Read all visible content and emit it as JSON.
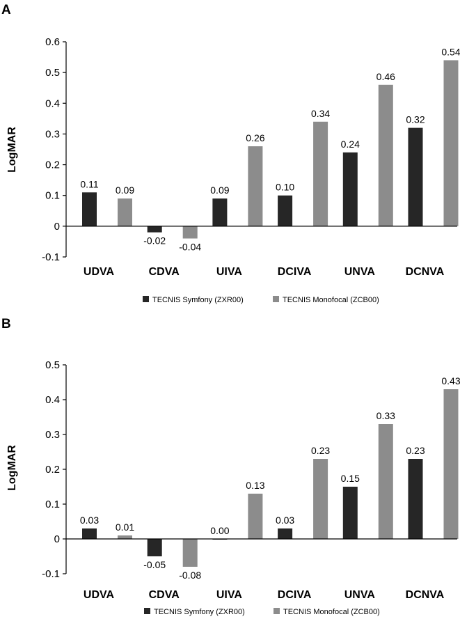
{
  "colors": {
    "series1": "#262626",
    "series2": "#8c8c8c",
    "axis": "#000000"
  },
  "chart_data": [
    {
      "panel": "A",
      "type": "bar",
      "ylabel": "LogMAR",
      "xlabel": "",
      "ylim": [
        -0.1,
        0.6
      ],
      "ytick_values": [
        -0.1,
        0,
        0.1,
        0.2,
        0.3,
        0.4,
        0.5,
        0.6
      ],
      "ytick_labels": [
        "-0.1",
        "0",
        "0.1",
        "0.2",
        "0.3",
        "0.4",
        "0.5",
        "0.6"
      ],
      "categories": [
        "UDVA",
        "CDVA",
        "UIVA",
        "DCIVA",
        "UNVA",
        "DCNVA"
      ],
      "series": [
        {
          "name": "TECNIS Symfony (ZXR00)",
          "values": [
            0.11,
            -0.02,
            0.09,
            0.1,
            0.24,
            0.32
          ],
          "labels": [
            "0.11",
            "-0.02",
            "0.09",
            "0.10",
            "0.24",
            "0.32"
          ]
        },
        {
          "name": "TECNIS Monofocal (ZCB00)",
          "values": [
            0.09,
            -0.04,
            0.26,
            0.34,
            0.46,
            0.54
          ],
          "labels": [
            "0.09",
            "-0.04",
            "0.26",
            "0.34",
            "0.46",
            "0.54"
          ]
        }
      ],
      "legend_position": "bottom-center"
    },
    {
      "panel": "B",
      "type": "bar",
      "ylabel": "LogMAR",
      "xlabel": "",
      "ylim": [
        -0.1,
        0.5
      ],
      "ytick_values": [
        -0.1,
        0,
        0.1,
        0.2,
        0.3,
        0.4,
        0.5
      ],
      "ytick_labels": [
        "-0.1",
        "0",
        "0.1",
        "0.2",
        "0.3",
        "0.4",
        "0.5"
      ],
      "categories": [
        "UDVA",
        "CDVA",
        "UIVA",
        "DCIVA",
        "UNVA",
        "DCNVA"
      ],
      "series": [
        {
          "name": "TECNIS Symfony (ZXR00)",
          "values": [
            0.03,
            -0.05,
            0.0,
            0.03,
            0.15,
            0.23
          ],
          "labels": [
            "0.03",
            "-0.05",
            "0.00",
            "0.03",
            "0.15",
            "0.23"
          ]
        },
        {
          "name": "TECNIS Monofocal (ZCB00)",
          "values": [
            0.01,
            -0.08,
            0.13,
            0.23,
            0.33,
            0.43
          ],
          "labels": [
            "0.01",
            "-0.08",
            "0.13",
            "0.23",
            "0.33",
            "0.43"
          ]
        }
      ],
      "legend_position": "bottom-center"
    }
  ]
}
